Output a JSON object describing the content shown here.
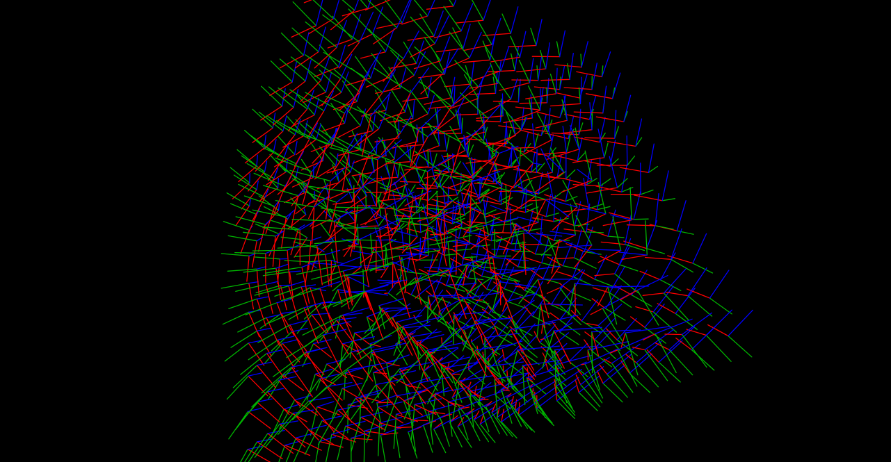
{
  "scene": {
    "background_color": "#000000",
    "object": "cube",
    "visualization": "vector-glyph-field",
    "grid_resolution": 10,
    "glyph_axis_colors": {
      "x_axis": "#ff0000",
      "y_axis": "#00b400",
      "z_axis": "#0000ff"
    },
    "view_rotation_degrees": {
      "yaw": -38,
      "pitch": 28,
      "roll": 12
    },
    "field_type": "swirl"
  }
}
